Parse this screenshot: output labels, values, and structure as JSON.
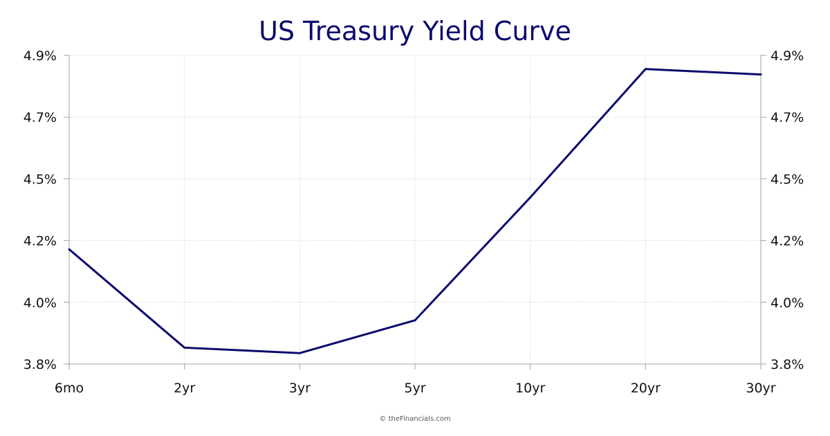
{
  "chart_data": {
    "type": "line",
    "title": "US Treasury Yield Curve",
    "categories": [
      "6mo",
      "2yr",
      "3yr",
      "5yr",
      "10yr",
      "20yr",
      "30yr"
    ],
    "series": [
      {
        "values": [
          4.2,
          3.84,
          3.82,
          3.94,
          4.39,
          4.86,
          4.84
        ],
        "color": "#0a0a6e"
      }
    ],
    "y_ticks": [
      "3.8%",
      "4.0%",
      "4.2%",
      "4.5%",
      "4.7%",
      "4.9%"
    ],
    "ylim": [
      3.78,
      4.91
    ],
    "y_axis_both_sides": true,
    "grid": true,
    "xlabel": "",
    "ylabel": ""
  },
  "footer": {
    "copyright": "© theFinancials.com"
  },
  "colors": {
    "line": "#0a0a6e",
    "title": "#0a0a6e",
    "grid": "#c8c8c8",
    "axis": "#a0a0a0"
  }
}
